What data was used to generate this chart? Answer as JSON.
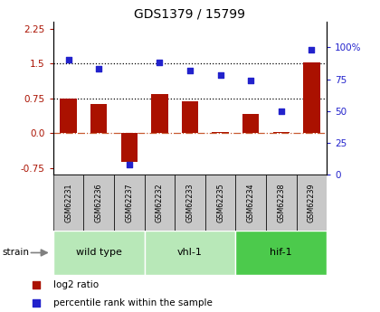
{
  "title": "GDS1379 / 15799",
  "samples": [
    "GSM62231",
    "GSM62236",
    "GSM62237",
    "GSM62232",
    "GSM62233",
    "GSM62235",
    "GSM62234",
    "GSM62238",
    "GSM62239"
  ],
  "log2_ratio": [
    0.75,
    0.62,
    -0.62,
    0.85,
    0.68,
    0.02,
    0.42,
    0.02,
    1.53
  ],
  "percentile_rank": [
    90,
    83,
    8,
    88,
    82,
    78,
    74,
    50,
    98
  ],
  "groups": [
    {
      "label": "wild type",
      "start": 0,
      "end": 3,
      "color": "#b8e8b8"
    },
    {
      "label": "vhl-1",
      "start": 3,
      "end": 6,
      "color": "#b8e8b8"
    },
    {
      "label": "hif-1",
      "start": 6,
      "end": 9,
      "color": "#4cca4c"
    }
  ],
  "ylim_left": [
    -0.9,
    2.4
  ],
  "ylim_right": [
    0,
    120
  ],
  "yticks_left": [
    -0.75,
    0.0,
    0.75,
    1.5,
    2.25
  ],
  "yticks_right": [
    0,
    25,
    50,
    75,
    100
  ],
  "hline_dotted1": 0.75,
  "hline_dotted2": 1.5,
  "hline_zero": 0.0,
  "bar_color": "#aa1100",
  "dot_color": "#2222cc",
  "bg_color": "#ffffff",
  "plot_bg": "#ffffff"
}
